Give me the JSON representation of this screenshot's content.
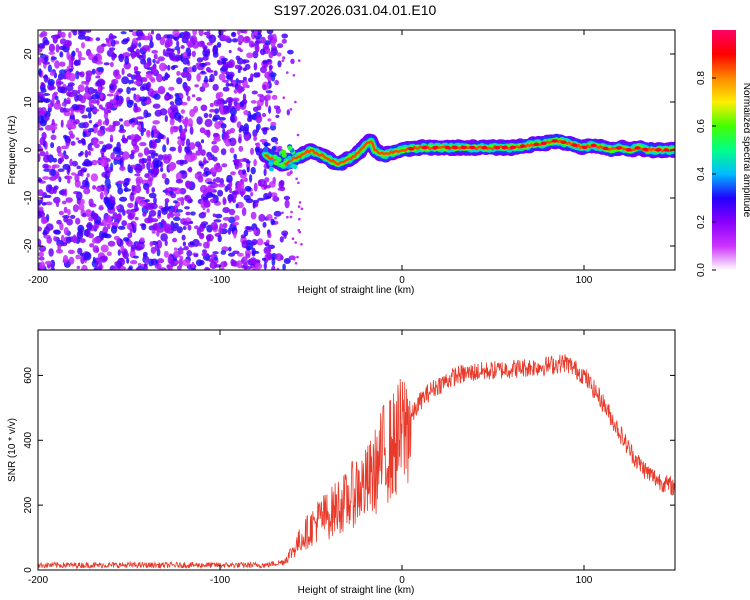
{
  "title": "S197.2026.031.04.01.E10",
  "chart_data": [
    {
      "type": "heatmap",
      "panel": "top",
      "xlabel": "Height of straight line (km)",
      "ylabel": "Frequency (Hz)",
      "xlim": [
        -200,
        150
      ],
      "ylim": [
        -25,
        25
      ],
      "xticks": [
        -200,
        -100,
        0,
        100
      ],
      "yticks": [
        -20,
        -10,
        0,
        10,
        20
      ],
      "colorbar": {
        "label": "Normalized spectral amplitude",
        "range": [
          0,
          1
        ],
        "ticks": [
          "0.0",
          "0.2",
          "0.4",
          "0.6",
          "0.8"
        ],
        "tick_values": [
          0.0,
          0.2,
          0.4,
          0.6,
          0.8
        ]
      },
      "noise_region_x": [
        -200,
        -70
      ],
      "ridge": {
        "x": [
          -75,
          -70,
          -65,
          -60,
          -55,
          -50,
          -45,
          -40,
          -35,
          -30,
          -25,
          -20,
          -17,
          -15,
          -10,
          -5,
          0,
          10,
          20,
          30,
          40,
          50,
          60,
          70,
          80,
          85,
          90,
          95,
          100,
          105,
          110,
          115,
          120,
          125,
          130,
          135,
          140,
          145,
          150
        ],
        "freq": [
          -1,
          -2,
          -3,
          -2,
          -1,
          0,
          -1,
          -2,
          -3,
          -2,
          -1,
          1,
          2,
          0,
          -1,
          -0.5,
          0,
          0.5,
          0.5,
          0.5,
          0.5,
          0.5,
          0.5,
          1,
          1.5,
          2,
          1.5,
          1,
          0.5,
          1,
          0.5,
          0,
          0.5,
          0,
          0.5,
          0,
          0,
          0,
          0
        ]
      }
    },
    {
      "type": "line",
      "panel": "bottom",
      "xlabel": "Height of straight line (km)",
      "ylabel": "SNR (10 * v/v)",
      "xlim": [
        -200,
        150
      ],
      "ylim": [
        0,
        740
      ],
      "xticks": [
        -200,
        -100,
        0,
        100
      ],
      "yticks": [
        0,
        200,
        400,
        600
      ],
      "color": "#e83a2a",
      "series": [
        {
          "name": "SNR",
          "x": [
            -200,
            -150,
            -100,
            -75,
            -65,
            -60,
            -55,
            -50,
            -45,
            -40,
            -35,
            -30,
            -25,
            -20,
            -15,
            -10,
            -5,
            0,
            5,
            10,
            15,
            20,
            25,
            30,
            40,
            50,
            60,
            70,
            80,
            90,
            95,
            100,
            105,
            110,
            115,
            120,
            125,
            130,
            135,
            140,
            145,
            150
          ],
          "values": [
            15,
            15,
            15,
            15,
            25,
            60,
            100,
            130,
            160,
            170,
            200,
            210,
            250,
            260,
            300,
            360,
            380,
            420,
            470,
            520,
            550,
            570,
            585,
            600,
            610,
            615,
            620,
            625,
            630,
            640,
            620,
            600,
            560,
            520,
            470,
            420,
            370,
            330,
            300,
            280,
            265,
            255
          ]
        }
      ]
    }
  ],
  "colors": {
    "colormap": [
      "#ffffff",
      "#cc33ff",
      "#8800ff",
      "#2200ff",
      "#00bbff",
      "#00ff88",
      "#44ff00",
      "#ffee00",
      "#ff8800",
      "#ff0000",
      "#ff0066"
    ]
  }
}
